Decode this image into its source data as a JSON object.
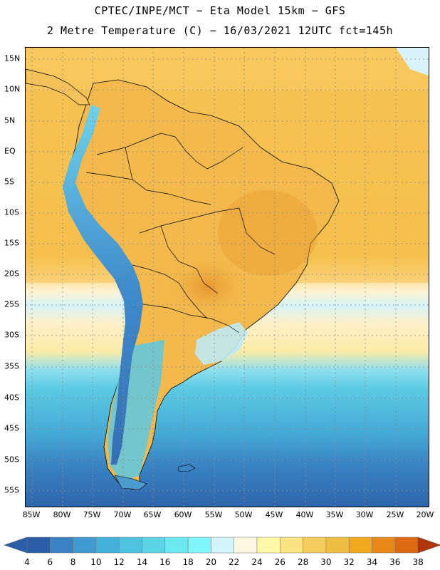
{
  "header": {
    "title_line1": "CPTEC/INPE/MCT −  Eta Model 15km − GFS",
    "title_line2": "2 Metre Temperature (C) − 16/03/2021 12UTC fct=145h"
  },
  "map": {
    "lat_labels": [
      "15N",
      "10N",
      "5N",
      "EQ",
      "5S",
      "10S",
      "15S",
      "20S",
      "25S",
      "30S",
      "35S",
      "40S",
      "45S",
      "50S",
      "55S"
    ],
    "lon_labels": [
      "85W",
      "80W",
      "75W",
      "70W",
      "65W",
      "60W",
      "55W",
      "50W",
      "45W",
      "40W",
      "35W",
      "30W",
      "25W",
      "20W"
    ]
  },
  "colorbar": {
    "labels": [
      "4",
      "6",
      "8",
      "10",
      "12",
      "14",
      "16",
      "18",
      "20",
      "22",
      "24",
      "26",
      "28",
      "30",
      "32",
      "34",
      "36",
      "38"
    ],
    "colors": [
      "#2a5fa8",
      "#3b82c4",
      "#3f9bcf",
      "#45b1d8",
      "#4fc3df",
      "#5cd4e6",
      "#6ee8f0",
      "#7ef6fb",
      "#d2f4fb",
      "#fdf6e1",
      "#fff8a8",
      "#fbe383",
      "#f5cd5f",
      "#eebe42",
      "#f0a81f",
      "#e8881b",
      "#dc6a12",
      "#c84a0a",
      "#b0350a"
    ],
    "low_color": "#2a5fa8",
    "high_color": "#b0350a"
  },
  "palette": {
    "ocean_warm": "#f8c45a",
    "land_warm": "#f2b84a",
    "land_hot": "#e8a035",
    "mountain_cold": "#3f86c8",
    "ocean_mid": "#fff3cc",
    "ocean_cool": "#58c8e0",
    "ocean_cold": "#3f9bd0",
    "ocean_coldest": "#2e6ab0",
    "grid": "#8a8a8a"
  }
}
